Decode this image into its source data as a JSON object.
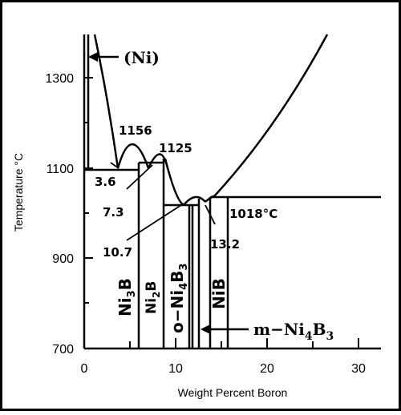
{
  "chart": {
    "xlabel": "Weight Percent Boron",
    "ylabel": "Temperature °C",
    "xlim": [
      0,
      32.5
    ],
    "ylim": [
      700,
      1385
    ],
    "xticks": [
      "0",
      "10",
      "20",
      "30"
    ],
    "yticks": [
      "1300",
      "1100",
      "900",
      "700"
    ]
  },
  "labels": {
    "ni": "(Ni)",
    "t1156": "1156",
    "t1125": "1125",
    "c36": "3.6",
    "c73": "7.3",
    "c107": "10.7",
    "c132": "13.2",
    "t1018": "1018°C"
  },
  "phases": {
    "ni3b": {
      "main": "Ni",
      "sub": "3",
      "tail": "B"
    },
    "ni2b": {
      "main": "Ni",
      "sub": "2",
      "tail": "B"
    },
    "oni4b3": {
      "main": "o−Ni",
      "sub": "4",
      "tail": "B",
      "sub2": "3"
    },
    "nib": {
      "main": "NiB"
    },
    "mni4b3": {
      "main": "m−Ni",
      "sub": "4",
      "tail": "B",
      "sub2": "3"
    }
  }
}
